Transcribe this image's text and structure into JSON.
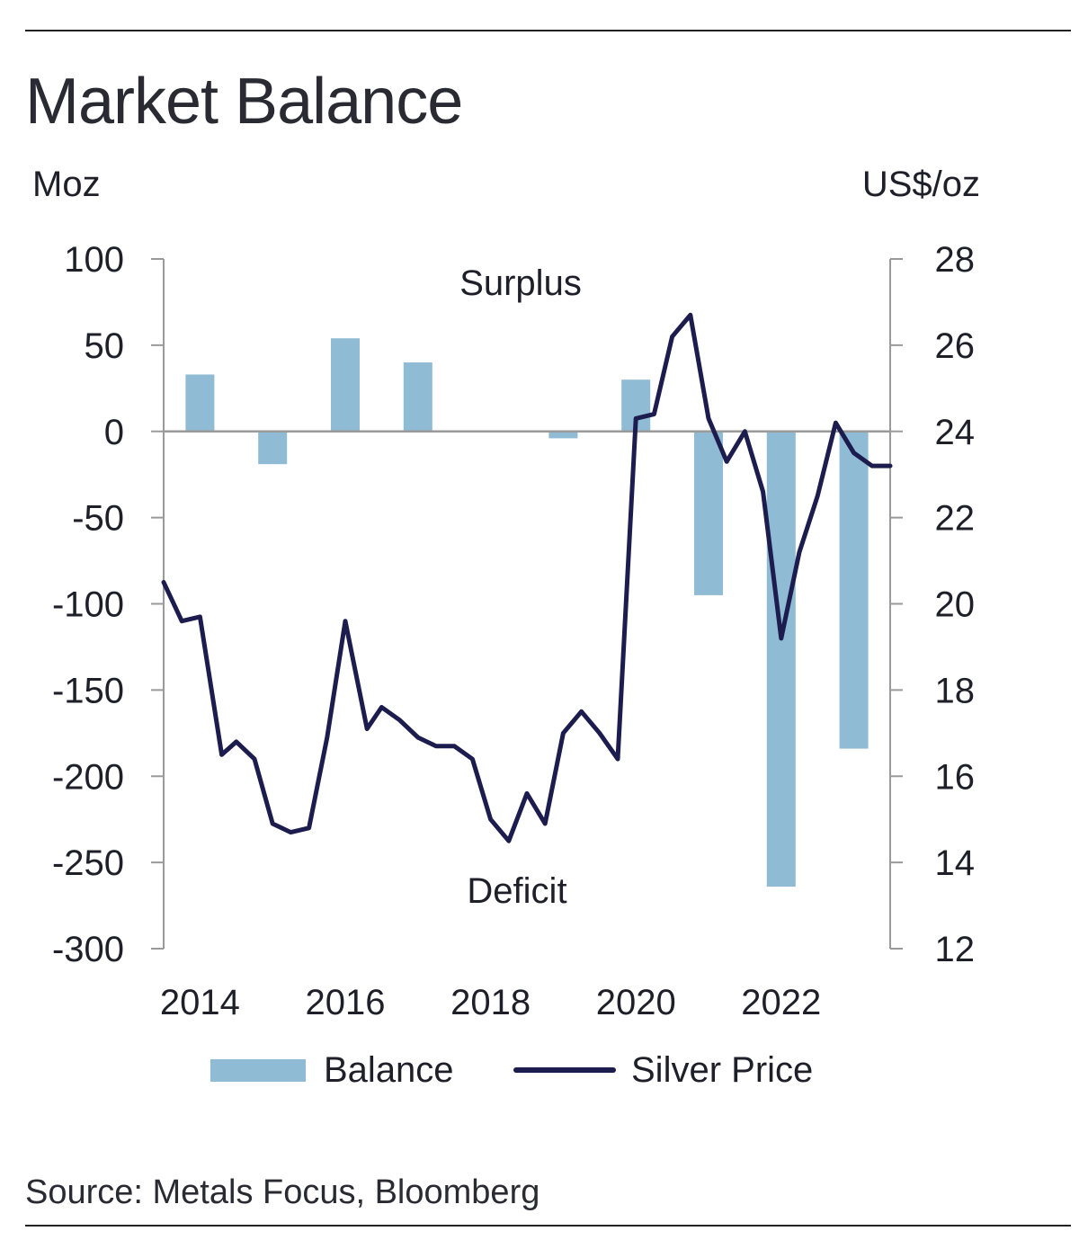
{
  "title": "Market Balance",
  "source": "Source: Metals Focus, Bloomberg",
  "chart_data": {
    "type": "bar+line",
    "left_axis": {
      "label": "Moz",
      "ticks": [
        100,
        50,
        0,
        -50,
        -100,
        -150,
        -200,
        -250,
        -300
      ],
      "range": [
        -300,
        100
      ]
    },
    "right_axis": {
      "label": "US$/oz",
      "ticks": [
        28,
        26,
        24,
        22,
        20,
        18,
        16,
        14,
        12
      ],
      "range": [
        12,
        28
      ]
    },
    "x_axis": {
      "ticks": [
        "2014",
        "2016",
        "2018",
        "2020",
        "2022"
      ],
      "range": [
        2013.5,
        2023.5
      ]
    },
    "annotations": {
      "surplus": "Surplus",
      "deficit": "Deficit"
    },
    "legend": {
      "position": "bottom",
      "items": [
        "Balance",
        "Silver Price"
      ]
    },
    "colors": {
      "balance": "#8fbbd4",
      "silver_price": "#1c1c4e",
      "axis": "#9a9a9a"
    },
    "series": [
      {
        "name": "Balance",
        "type": "bar",
        "axis": "left",
        "x": [
          2014,
          2015,
          2016,
          2017,
          2018,
          2019,
          2020,
          2021,
          2022,
          2023
        ],
        "values": [
          33,
          -19,
          54,
          40,
          0,
          -4,
          30,
          -95,
          -264,
          -184
        ]
      },
      {
        "name": "Silver Price",
        "type": "line",
        "axis": "right",
        "x": [
          2013.5,
          2013.75,
          2014.0,
          2014.3,
          2014.5,
          2014.75,
          2015.0,
          2015.25,
          2015.5,
          2015.75,
          2016.0,
          2016.3,
          2016.5,
          2016.75,
          2017.0,
          2017.25,
          2017.5,
          2017.75,
          2018.0,
          2018.25,
          2018.5,
          2018.75,
          2019.0,
          2019.25,
          2019.5,
          2019.75,
          2020.0,
          2020.25,
          2020.5,
          2020.75,
          2021.0,
          2021.25,
          2021.5,
          2021.75,
          2022.0,
          2022.25,
          2022.5,
          2022.75,
          2023.0,
          2023.25,
          2023.5
        ],
        "values": [
          20.5,
          19.6,
          19.7,
          16.5,
          16.8,
          16.4,
          14.9,
          14.7,
          14.8,
          16.9,
          19.6,
          17.1,
          17.6,
          17.3,
          16.9,
          16.7,
          16.7,
          16.4,
          15.0,
          14.5,
          15.6,
          14.9,
          17.0,
          17.5,
          17.0,
          16.4,
          24.3,
          24.4,
          26.2,
          26.7,
          24.3,
          23.3,
          24.0,
          22.6,
          19.2,
          21.2,
          22.5,
          24.2,
          23.5,
          23.2,
          23.2
        ]
      }
    ]
  }
}
